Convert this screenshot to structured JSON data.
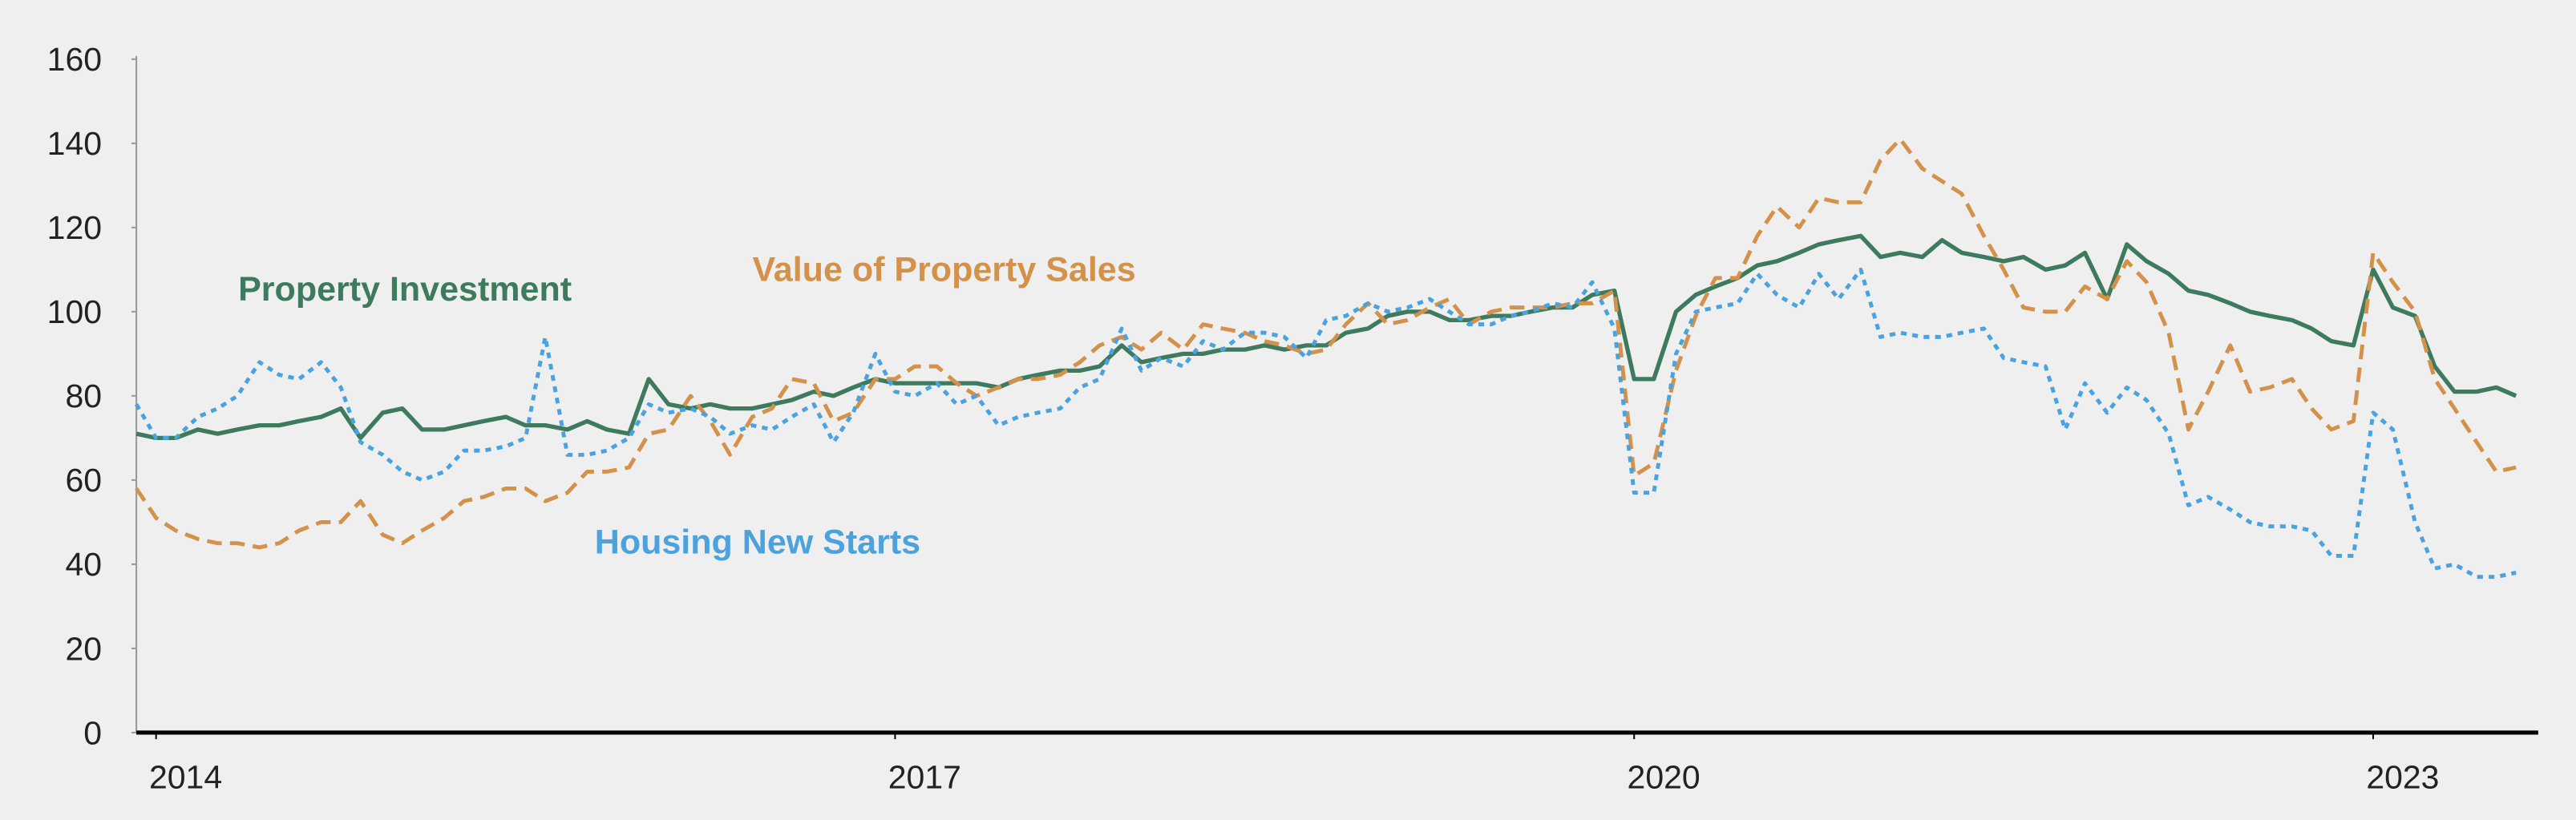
{
  "chart_data": {
    "type": "line",
    "annotations": [
      {
        "text": "Property Investment",
        "color": "#3d7a5e"
      },
      {
        "text": "Value of Property Sales",
        "color": "#d4914a"
      },
      {
        "text": "Housing New Starts",
        "color": "#4aa3df"
      }
    ],
    "x": [
      2013.92,
      2014,
      2014.08,
      2014.17,
      2014.25,
      2014.33,
      2014.42,
      2014.5,
      2014.58,
      2014.67,
      2014.75,
      2014.83,
      2014.92,
      2015,
      2015.08,
      2015.17,
      2015.25,
      2015.33,
      2015.42,
      2015.5,
      2015.58,
      2015.67,
      2015.75,
      2015.83,
      2015.92,
      2016,
      2016.08,
      2016.17,
      2016.25,
      2016.33,
      2016.42,
      2016.5,
      2016.58,
      2016.67,
      2016.75,
      2016.83,
      2016.92,
      2017,
      2017.08,
      2017.17,
      2017.25,
      2017.33,
      2017.42,
      2017.5,
      2017.58,
      2017.67,
      2017.75,
      2017.83,
      2017.92,
      2018,
      2018.08,
      2018.17,
      2018.25,
      2018.33,
      2018.42,
      2018.5,
      2018.58,
      2018.67,
      2018.75,
      2018.83,
      2018.92,
      2019,
      2019.08,
      2019.17,
      2019.25,
      2019.33,
      2019.42,
      2019.5,
      2019.58,
      2019.67,
      2019.75,
      2019.83,
      2019.92,
      2020,
      2020.08,
      2020.17,
      2020.25,
      2020.33,
      2020.42,
      2020.5,
      2020.58,
      2020.67,
      2020.75,
      2020.83,
      2020.92,
      2021,
      2021.08,
      2021.17,
      2021.25,
      2021.33,
      2021.42,
      2021.5,
      2021.58,
      2021.67,
      2021.75,
      2021.83,
      2021.92,
      2022,
      2022.08,
      2022.17,
      2022.25,
      2022.33,
      2022.42,
      2022.5,
      2022.58,
      2022.67,
      2022.75,
      2022.83,
      2022.92,
      2023,
      2023.08,
      2023.17,
      2023.25,
      2023.33,
      2023.42,
      2023.5,
      2023.58
    ],
    "series": [
      {
        "name": "Property Investment",
        "color": "#3d7a5e",
        "style": "solid",
        "values": [
          71,
          70,
          70,
          72,
          71,
          72,
          73,
          73,
          74,
          75,
          77,
          70,
          76,
          77,
          72,
          72,
          73,
          74,
          75,
          73,
          73,
          72,
          74,
          72,
          71,
          84,
          78,
          77,
          78,
          77,
          77,
          78,
          79,
          81,
          80,
          82,
          84,
          83,
          83,
          83,
          83,
          83,
          82,
          84,
          85,
          86,
          86,
          87,
          92,
          88,
          89,
          90,
          90,
          91,
          91,
          92,
          91,
          92,
          92,
          95,
          96,
          99,
          100,
          100,
          98,
          98,
          99,
          99,
          100,
          101,
          101,
          104,
          105,
          84,
          84,
          100,
          104,
          106,
          108,
          111,
          112,
          114,
          116,
          117,
          118,
          113,
          114,
          113,
          117,
          114,
          113,
          112,
          113,
          110,
          111,
          114,
          103,
          116,
          112,
          109,
          105,
          104,
          102,
          100,
          99,
          98,
          96,
          93,
          92,
          110,
          101,
          99,
          87,
          81,
          81,
          82,
          80
        ]
      },
      {
        "name": "Value of Property Sales",
        "color": "#d4914a",
        "style": "dashed",
        "values": [
          58,
          51,
          48,
          46,
          45,
          45,
          44,
          45,
          48,
          50,
          50,
          55,
          47,
          45,
          48,
          51,
          55,
          56,
          58,
          58,
          55,
          57,
          62,
          62,
          63,
          71,
          72,
          80,
          74,
          66,
          75,
          77,
          84,
          83,
          74,
          76,
          84,
          84,
          87,
          87,
          83,
          80,
          82,
          84,
          84,
          85,
          88,
          92,
          94,
          91,
          95,
          91,
          97,
          96,
          95,
          93,
          92,
          90,
          91,
          97,
          102,
          97,
          98,
          101,
          103,
          97,
          100,
          101,
          101,
          101,
          102,
          102,
          105,
          61,
          64,
          86,
          99,
          108,
          108,
          118,
          125,
          120,
          127,
          126,
          126,
          136,
          141,
          134,
          131,
          128,
          118,
          110,
          101,
          100,
          100,
          106,
          103,
          112,
          107,
          95,
          72,
          81,
          92,
          81,
          82,
          84,
          77,
          72,
          74,
          114,
          107,
          100,
          84,
          77,
          69,
          62,
          63
        ]
      },
      {
        "name": "Housing New Starts",
        "color": "#4aa3df",
        "style": "dotted",
        "values": [
          78,
          70,
          70,
          75,
          77,
          80,
          88,
          85,
          84,
          88,
          82,
          69,
          66,
          62,
          60,
          62,
          67,
          67,
          68,
          70,
          94,
          66,
          66,
          67,
          70,
          78,
          76,
          77,
          75,
          71,
          73,
          72,
          75,
          78,
          69,
          76,
          90,
          81,
          80,
          83,
          78,
          80,
          73,
          75,
          76,
          77,
          82,
          84,
          96,
          86,
          89,
          87,
          93,
          91,
          95,
          95,
          94,
          89,
          98,
          99,
          102,
          100,
          101,
          103,
          100,
          97,
          97,
          99,
          100,
          102,
          101,
          107,
          96,
          57,
          57,
          90,
          100,
          101,
          102,
          109,
          104,
          101,
          109,
          103,
          110,
          94,
          95,
          94,
          94,
          95,
          96,
          89,
          88,
          87,
          72,
          83,
          76,
          82,
          79,
          71,
          54,
          56,
          53,
          50,
          49,
          49,
          48,
          42,
          42,
          76,
          72,
          50,
          39,
          40,
          37,
          37,
          38
        ]
      }
    ],
    "xlim": [
      2013.92,
      2023.67
    ],
    "xticks": [
      2014,
      2017,
      2020,
      2023
    ],
    "ylim": [
      0,
      160
    ],
    "yticks": [
      0,
      20,
      40,
      60,
      80,
      100,
      120,
      140,
      160
    ]
  }
}
